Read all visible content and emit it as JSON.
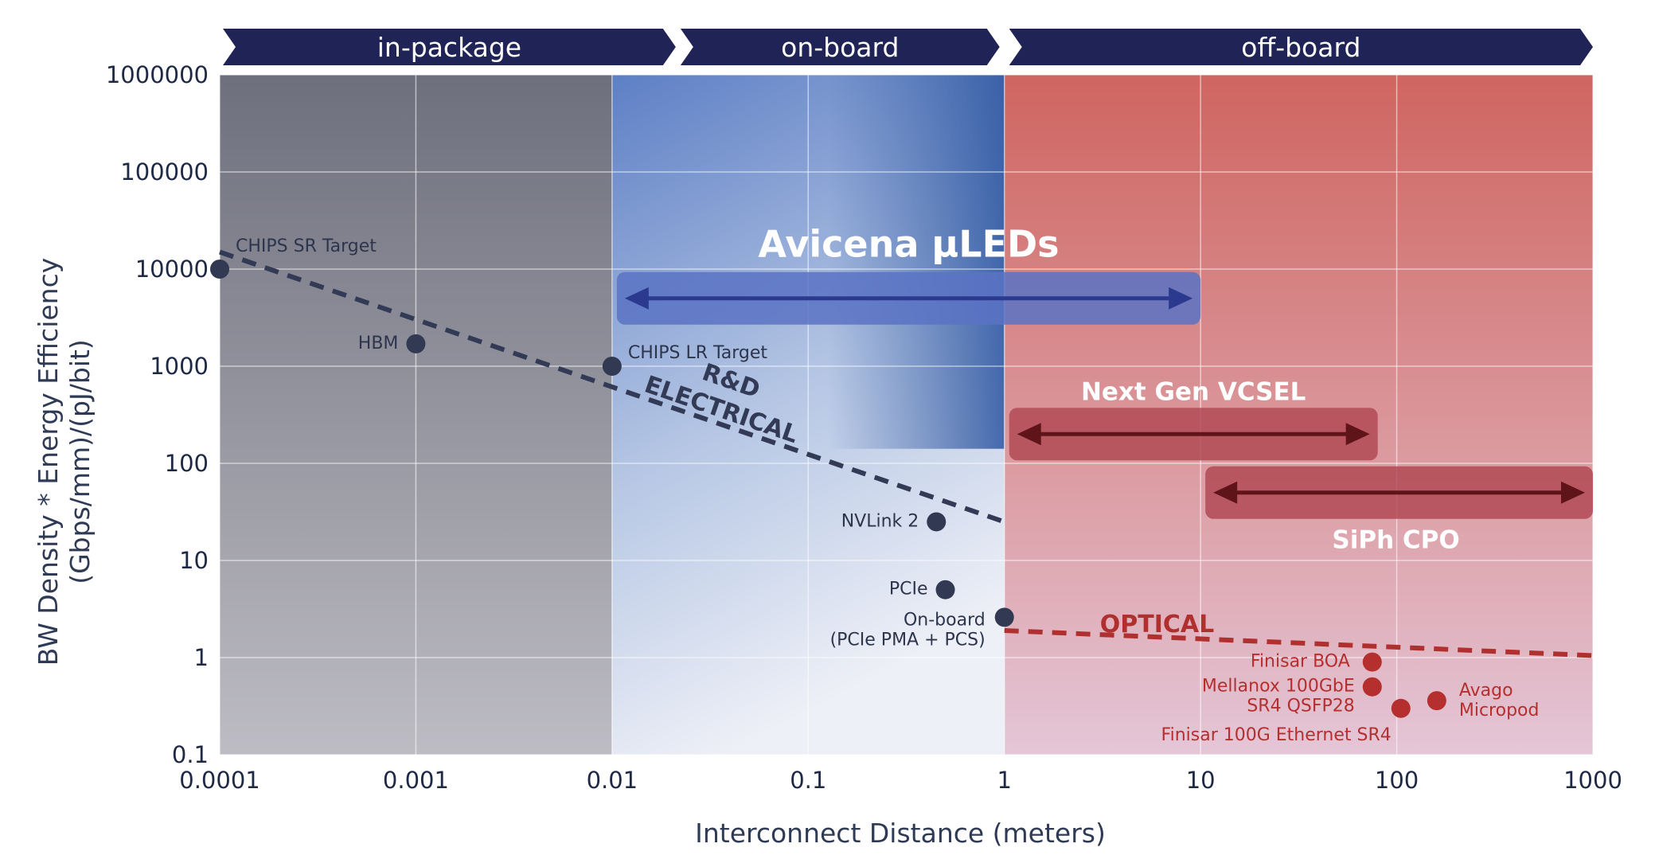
{
  "chart_data": {
    "type": "scatter",
    "x_scale": "log",
    "y_scale": "log",
    "xlabel": "Interconnect Distance (meters)",
    "ylabel": "BW Density * Energy Efficiency",
    "ylabel_line2": "(Gbps/mm)/(pJ/bit)",
    "xlim": [
      0.0001,
      1000
    ],
    "ylim": [
      0.1,
      1000000
    ],
    "x_ticks": [
      "0.0001",
      "0.001",
      "0.01",
      "0.1",
      "1",
      "10",
      "100",
      "1000"
    ],
    "y_ticks": [
      "0.1",
      "1",
      "10",
      "100",
      "1000",
      "10000",
      "100000",
      "1000000"
    ],
    "grid": true,
    "regions": [
      {
        "label": "in-package",
        "x_start": 0.0001,
        "x_end": 0.01,
        "color": "#7e7f8c"
      },
      {
        "label": "on-board",
        "x_start": 0.01,
        "x_end": 1,
        "color": "#5a7cbf"
      },
      {
        "label": "off-board",
        "x_start": 1,
        "x_end": 1000,
        "color": "#d46a63"
      }
    ],
    "range_bands": [
      {
        "label": "Avicena µLEDs",
        "x_start": 0.01,
        "x_end": 10,
        "y": 5000,
        "color": "#5b73c4",
        "arrow_color": "#2b3a8f"
      },
      {
        "label": "Next Gen VCSEL",
        "x_start": 1,
        "x_end": 80,
        "y": 200,
        "color": "#b24a55",
        "arrow_color": "#5e1418"
      },
      {
        "label": "SiPh CPO",
        "x_start": 10,
        "x_end": 1000,
        "y": 50,
        "color": "#b24a55",
        "arrow_color": "#5e1418"
      }
    ],
    "trend_lines": [
      {
        "label_line1": "R&D",
        "label_line2": "ELECTRICAL",
        "color": "#323a55",
        "x": [
          0.0001,
          1
        ],
        "y": [
          15000,
          25
        ]
      },
      {
        "label": "OPTICAL",
        "color": "#b03030",
        "x": [
          1,
          1000
        ],
        "y": [
          1.9,
          1.05
        ]
      }
    ],
    "series": [
      {
        "name": "Electrical",
        "color": "#313a52",
        "points": [
          {
            "label": "CHIPS SR Target",
            "x": 0.0001,
            "y": 10000
          },
          {
            "label": "HBM",
            "x": 0.001,
            "y": 1700
          },
          {
            "label": "CHIPS LR Target",
            "x": 0.01,
            "y": 1000
          },
          {
            "label": "NVLink 2",
            "x": 0.45,
            "y": 25
          },
          {
            "label": "PCIe",
            "x": 0.5,
            "y": 5
          },
          {
            "label": "On-board",
            "label_line2": "(PCIe  PMA + PCS)",
            "x": 1,
            "y": 2.6
          }
        ]
      },
      {
        "name": "Optical",
        "color": "#b52f2f",
        "points": [
          {
            "label": "Finisar BOA",
            "x": 75,
            "y": 0.9
          },
          {
            "label": "Mellanox 100GbE",
            "label_line2": "SR4 QSFP28",
            "x": 75,
            "y": 0.5
          },
          {
            "label": "Finisar 100G Ethernet SR4",
            "x": 105,
            "y": 0.3
          },
          {
            "label": "Avago",
            "label_line2": "Micropod",
            "x": 160,
            "y": 0.36
          }
        ]
      }
    ]
  }
}
